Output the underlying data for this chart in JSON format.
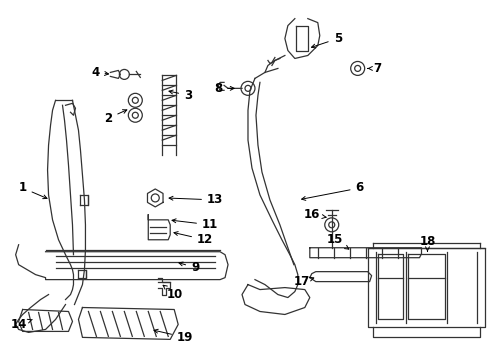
{
  "background_color": "#ffffff",
  "line_color": "#333333",
  "fig_width": 4.89,
  "fig_height": 3.6,
  "dpi": 100,
  "label_fontsize": 8.5
}
